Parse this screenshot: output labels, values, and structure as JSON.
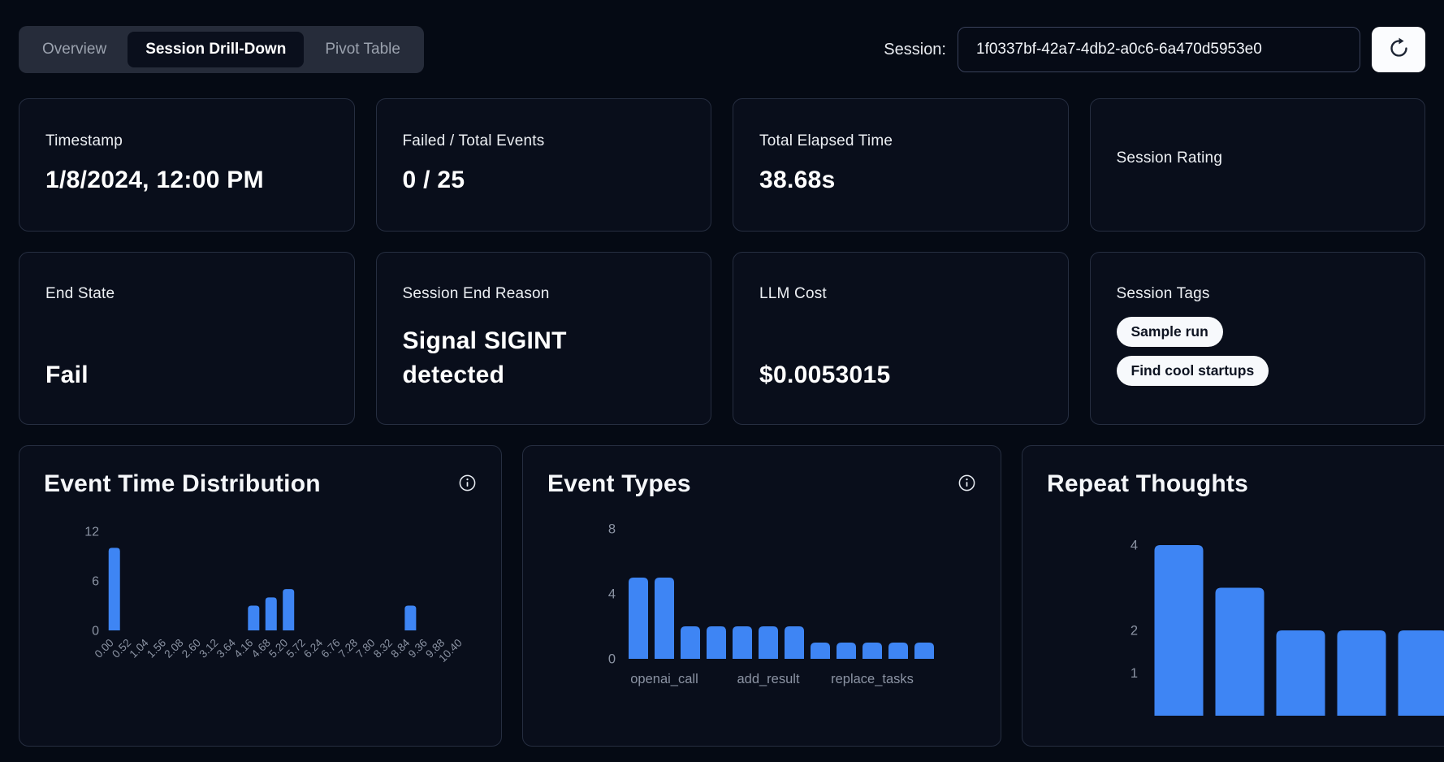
{
  "header": {
    "tabs": [
      {
        "label": "Overview",
        "active": false
      },
      {
        "label": "Session Drill-Down",
        "active": true
      },
      {
        "label": "Pivot Table",
        "active": false
      }
    ],
    "session_label": "Session:",
    "session_id": "1f0337bf-42a7-4db2-a0c6-6a470d5953e0"
  },
  "metrics": {
    "row1": [
      {
        "label": "Timestamp",
        "value": "1/8/2024, 12:00 PM"
      },
      {
        "label": "Failed / Total Events",
        "value": "0 / 25"
      },
      {
        "label": "Total Elapsed Time",
        "value": "38.68s"
      },
      {
        "label": "Session Rating",
        "value": ""
      }
    ],
    "row2": [
      {
        "label": "End State",
        "value": "Fail"
      },
      {
        "label": "Session End Reason",
        "value": "Signal SIGINT detected"
      },
      {
        "label": "LLM Cost",
        "value": "$0.0053015"
      },
      {
        "label": "Session Tags",
        "tags": [
          "Sample run",
          "Find cool startups"
        ]
      }
    ]
  },
  "colors": {
    "bar": "#3e85f4",
    "axis": "#8b93a3",
    "card_background": "#090e1b",
    "page_background": "#050a14",
    "tag_background": "#f7f9fc"
  },
  "chart_data": [
    {
      "type": "bar",
      "title": "Event Time Distribution",
      "categories": [
        "0.00",
        "0.52",
        "1.04",
        "1.56",
        "2.08",
        "2.60",
        "3.12",
        "3.64",
        "4.16",
        "4.68",
        "5.20",
        "5.72",
        "6.24",
        "6.76",
        "7.28",
        "7.80",
        "8.32",
        "8.84",
        "9.36",
        "9.88",
        "10.40"
      ],
      "values": [
        10,
        0,
        0,
        0,
        0,
        0,
        0,
        0,
        3,
        4,
        5,
        0,
        0,
        0,
        0,
        0,
        0,
        3,
        0,
        0,
        0
      ],
      "yticks": [
        0,
        6,
        12
      ],
      "ylim": [
        0,
        12
      ],
      "xlabel": "",
      "ylabel": "",
      "x_tick_rotation": -45,
      "grid": false,
      "legend": false
    },
    {
      "type": "bar",
      "title": "Event Types",
      "values": [
        5,
        5,
        2,
        2,
        2,
        2,
        2,
        1,
        1,
        1,
        1,
        1
      ],
      "x_labels": [
        {
          "index": 1,
          "label": "openai_call"
        },
        {
          "index": 5,
          "label": "add_result"
        },
        {
          "index": 9,
          "label": "replace_tasks"
        }
      ],
      "yticks": [
        0,
        4,
        8
      ],
      "ylim": [
        0,
        8
      ],
      "grid": false,
      "legend": false
    },
    {
      "type": "bar",
      "title": "Repeat Thoughts",
      "values": [
        4,
        3,
        2,
        2,
        2
      ],
      "yticks": [
        1,
        2,
        4
      ],
      "ylim": [
        0,
        4.5
      ],
      "grid": false,
      "legend": false
    }
  ]
}
